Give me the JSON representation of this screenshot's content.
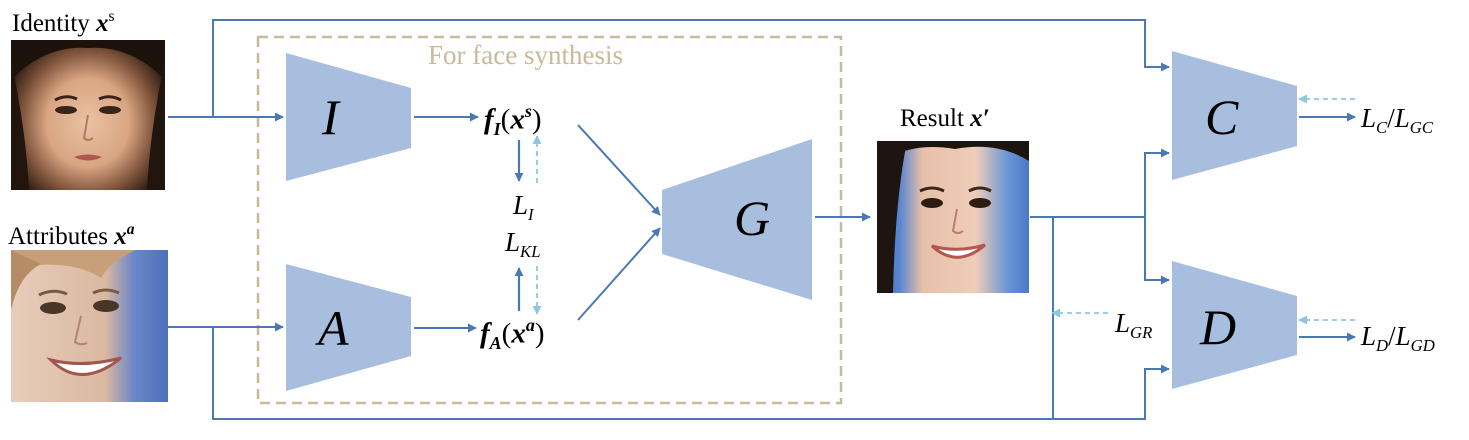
{
  "inputs": {
    "identity": {
      "label": "Identity",
      "symbol": "x",
      "sup": "s"
    },
    "attributes": {
      "label": "Attributes",
      "symbol": "x",
      "sup": "a"
    },
    "result": {
      "label": "Result",
      "symbol": "x′"
    }
  },
  "region": {
    "title": "For face synthesis",
    "color": "#c8b99a"
  },
  "blocks": {
    "identity_encoder": "I",
    "attribute_encoder": "A",
    "generator": "G",
    "classifier": "C",
    "discriminator": "D"
  },
  "features": {
    "identity": {
      "f": "f",
      "f_sub": "I",
      "arg_open": "(",
      "arg": "x",
      "arg_sup": "s",
      "arg_close": ")"
    },
    "attribute": {
      "f": "f",
      "f_sub": "A",
      "arg_open": "(",
      "arg": "x",
      "arg_sup": "a",
      "arg_close": ")"
    }
  },
  "losses": {
    "identity": {
      "L": "L",
      "sub": "I"
    },
    "kl": {
      "L": "L",
      "sub": "KL"
    },
    "reconstruction": {
      "L": "L",
      "sub": "GR"
    },
    "classifier": {
      "L1": "L",
      "sub1": "C",
      "slash": "/",
      "L2": "L",
      "sub2": "GC"
    },
    "discriminator": {
      "L1": "L",
      "sub1": "D",
      "slash": "/",
      "L2": "L",
      "sub2": "GD"
    }
  },
  "colors": {
    "block_fill": "#a8bedf",
    "arrow": "#4a78b5",
    "dashed_arrow": "#8cc6e3",
    "region_border": "#c8b99a"
  }
}
